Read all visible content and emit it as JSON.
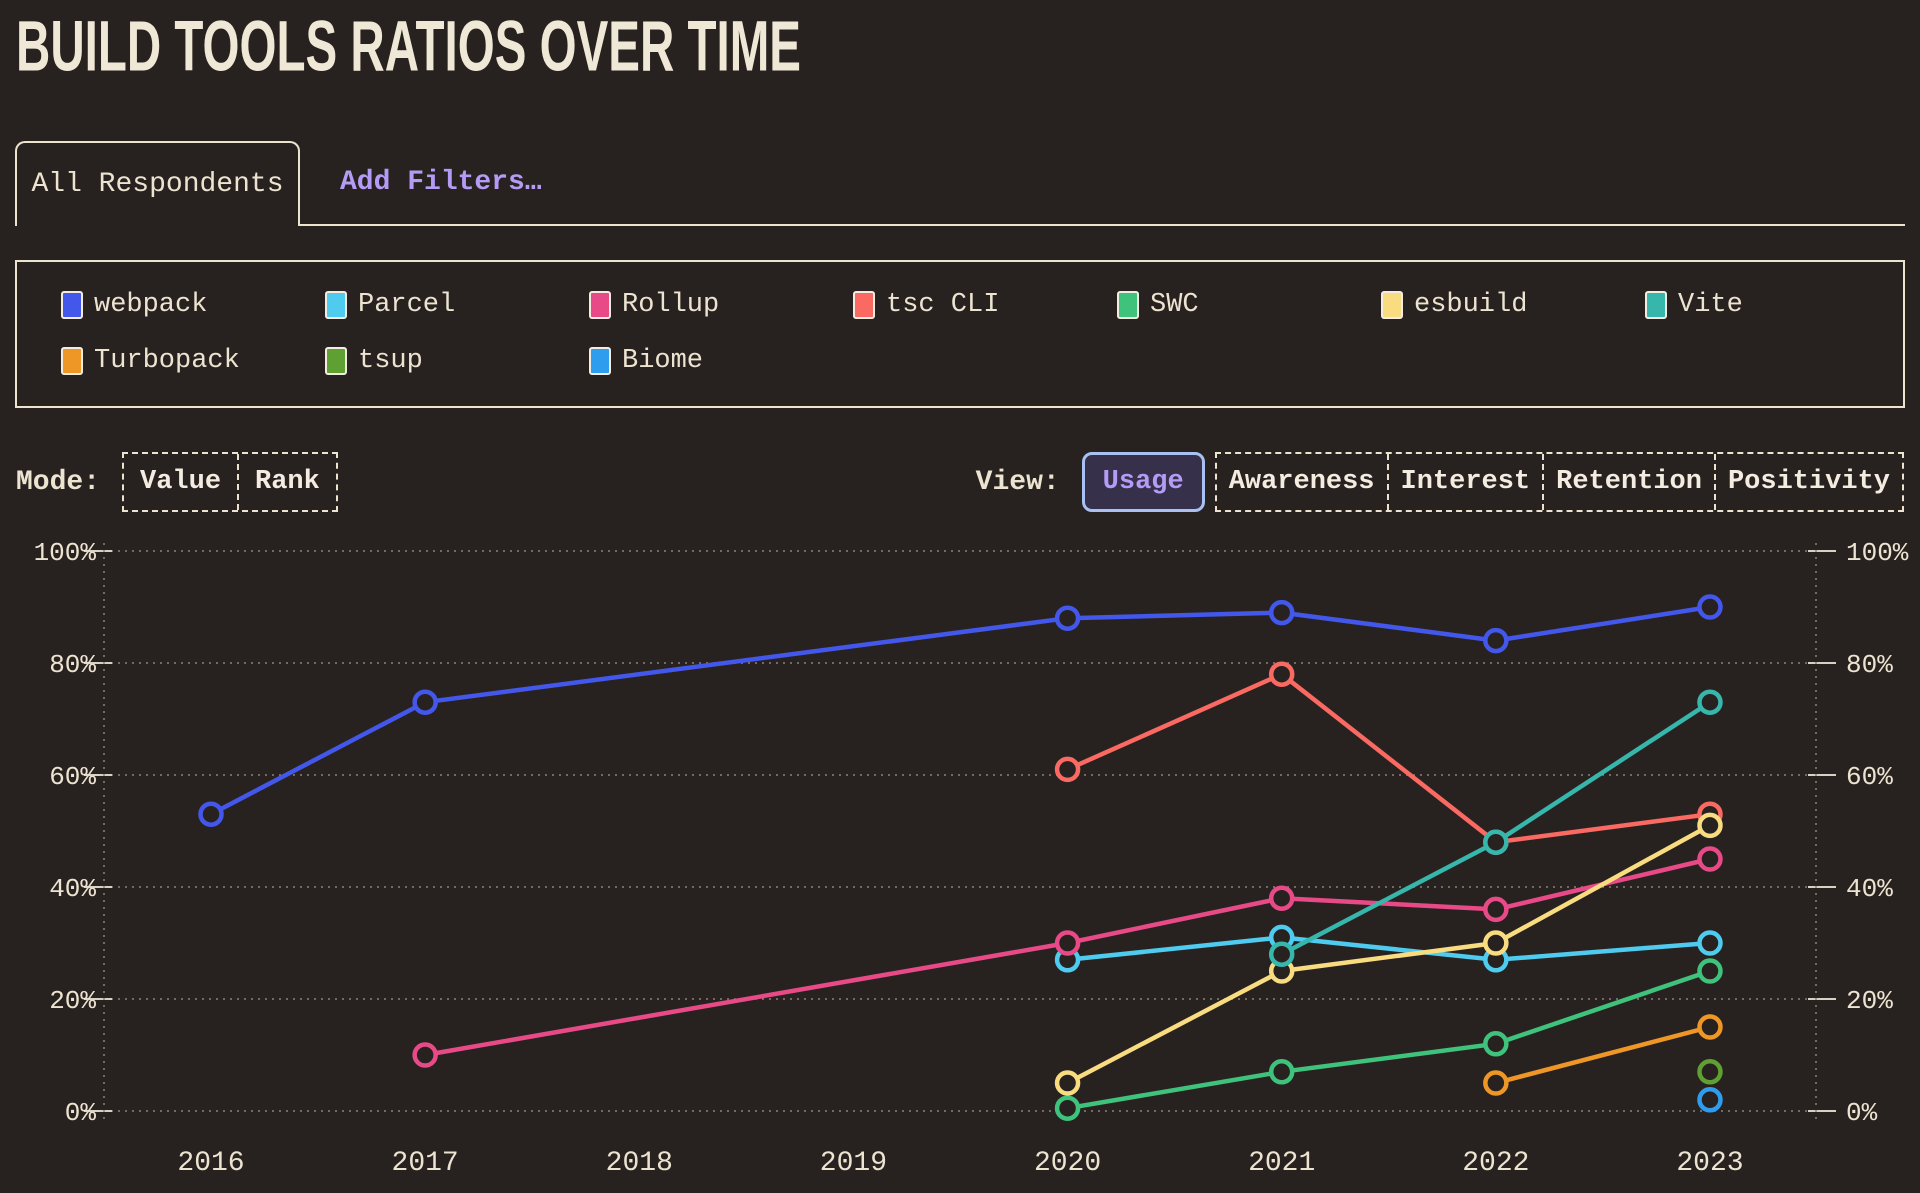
{
  "title": "BUILD TOOLS RATIOS OVER TIME",
  "header": {
    "tab_label": "All Respondents",
    "add_filters_label": "Add Filters…"
  },
  "theme": {
    "background": "#272220",
    "text_cream": "#ece3d0",
    "accent_purple": "#b49bf5",
    "selected_border": "#a9c0f2",
    "selected_bg": "#37304a",
    "gridline": "#8a8379",
    "tick": "#d8d1c4"
  },
  "legend": {
    "items": [
      {
        "label": "webpack",
        "color": "#4357eb"
      },
      {
        "label": "Parcel",
        "color": "#4ecbee"
      },
      {
        "label": "Rollup",
        "color": "#e84a87"
      },
      {
        "label": "tsc CLI",
        "color": "#fa6962"
      },
      {
        "label": "SWC",
        "color": "#3ec27c"
      },
      {
        "label": "esbuild",
        "color": "#f9dc80"
      },
      {
        "label": "Vite",
        "color": "#37b6ab"
      },
      {
        "label": "Turbopack",
        "color": "#ee9727"
      },
      {
        "label": "tsup",
        "color": "#5fa032"
      },
      {
        "label": "Biome",
        "color": "#2e9ded"
      }
    ]
  },
  "controls": {
    "mode_label": "Mode:",
    "mode_options": [
      {
        "label": "Value",
        "selected": false
      },
      {
        "label": "Rank",
        "selected": false
      }
    ],
    "view_label": "View:",
    "view_options": [
      {
        "label": "Usage",
        "selected": true
      },
      {
        "label": "Awareness",
        "selected": false
      },
      {
        "label": "Interest",
        "selected": false
      },
      {
        "label": "Retention",
        "selected": false
      },
      {
        "label": "Positivity",
        "selected": false
      }
    ]
  },
  "chart_data": {
    "type": "line",
    "title": "Build Tools Ratios Over Time — Usage",
    "x": [
      2016,
      2017,
      2018,
      2019,
      2020,
      2021,
      2022,
      2023
    ],
    "xlabel": "",
    "ylabel": "",
    "ylim": [
      0,
      100
    ],
    "yticks": [
      0,
      20,
      40,
      60,
      80,
      100
    ],
    "ytick_suffix": "%",
    "grid": "dotted-horizontal",
    "legend_position": "top-box",
    "marker": "open-circle",
    "series": [
      {
        "name": "webpack",
        "color": "#4357eb",
        "points": [
          {
            "year": 2016,
            "value": 53
          },
          {
            "year": 2017,
            "value": 73
          },
          {
            "year": 2020,
            "value": 88
          },
          {
            "year": 2021,
            "value": 89
          },
          {
            "year": 2022,
            "value": 84
          },
          {
            "year": 2023,
            "value": 90
          }
        ]
      },
      {
        "name": "Parcel",
        "color": "#4ecbee",
        "points": [
          {
            "year": 2020,
            "value": 27
          },
          {
            "year": 2021,
            "value": 31
          },
          {
            "year": 2022,
            "value": 27
          },
          {
            "year": 2023,
            "value": 30
          }
        ]
      },
      {
        "name": "Rollup",
        "color": "#e84a87",
        "points": [
          {
            "year": 2017,
            "value": 10
          },
          {
            "year": 2020,
            "value": 30
          },
          {
            "year": 2021,
            "value": 38
          },
          {
            "year": 2022,
            "value": 36
          },
          {
            "year": 2023,
            "value": 45
          }
        ]
      },
      {
        "name": "tsc CLI",
        "color": "#fa6962",
        "points": [
          {
            "year": 2020,
            "value": 61
          },
          {
            "year": 2021,
            "value": 78
          },
          {
            "year": 2022,
            "value": 48
          },
          {
            "year": 2023,
            "value": 53
          }
        ]
      },
      {
        "name": "SWC",
        "color": "#3ec27c",
        "points": [
          {
            "year": 2020,
            "value": 0.5
          },
          {
            "year": 2021,
            "value": 7
          },
          {
            "year": 2022,
            "value": 12
          },
          {
            "year": 2023,
            "value": 25
          }
        ]
      },
      {
        "name": "esbuild",
        "color": "#f9dc80",
        "points": [
          {
            "year": 2020,
            "value": 5
          },
          {
            "year": 2021,
            "value": 25
          },
          {
            "year": 2022,
            "value": 30
          },
          {
            "year": 2023,
            "value": 51
          }
        ]
      },
      {
        "name": "Vite",
        "color": "#37b6ab",
        "points": [
          {
            "year": 2021,
            "value": 28
          },
          {
            "year": 2022,
            "value": 48
          },
          {
            "year": 2023,
            "value": 73
          }
        ]
      },
      {
        "name": "Turbopack",
        "color": "#ee9727",
        "points": [
          {
            "year": 2022,
            "value": 5
          },
          {
            "year": 2023,
            "value": 15
          }
        ]
      },
      {
        "name": "tsup",
        "color": "#5fa032",
        "points": [
          {
            "year": 2023,
            "value": 7
          }
        ]
      },
      {
        "name": "Biome",
        "color": "#2e9ded",
        "points": [
          {
            "year": 2023,
            "value": 2
          }
        ]
      }
    ]
  }
}
